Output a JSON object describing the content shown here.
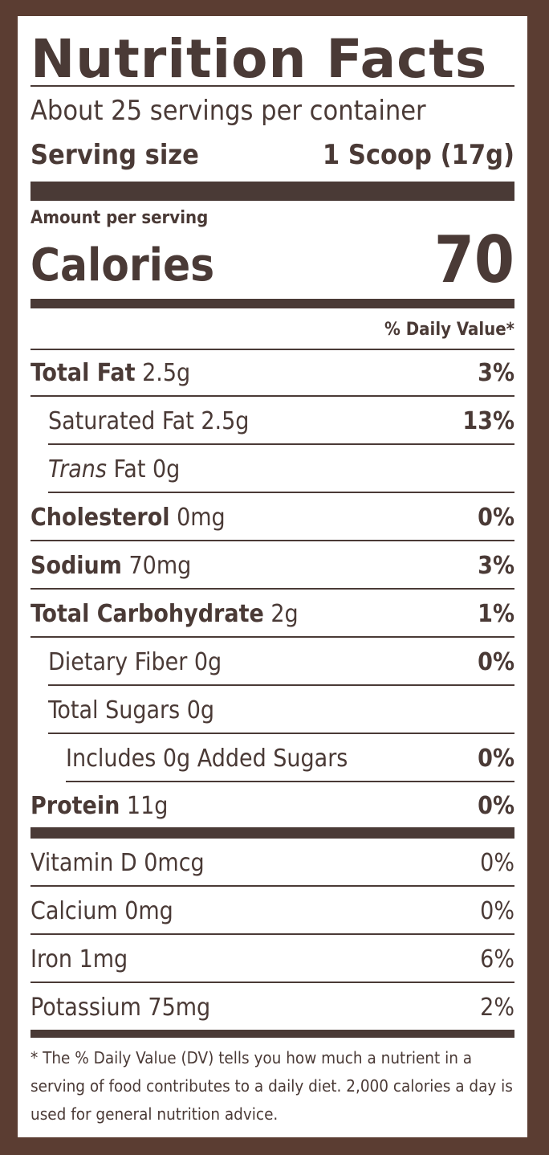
{
  "label": {
    "title": "Nutrition Facts",
    "servings_per_container": "About 25 servings per container",
    "serving_size_label": "Serving size",
    "serving_size_value": "1 Scoop (17g)",
    "amount_per_serving": "Amount per serving",
    "calories_label": "Calories",
    "calories_value": "70",
    "daily_value_header": "% Daily Value*",
    "nutrients": [
      {
        "name": "Total Fat",
        "amount": "2.5g",
        "dv": "3%"
      },
      {
        "name": "Saturated Fat 2.5g",
        "dv": "13%"
      },
      {
        "prefix": "Trans",
        "name": "Fat 0g",
        "dv": ""
      },
      {
        "name": "Cholesterol",
        "amount": "0mg",
        "dv": "0%"
      },
      {
        "name": "Sodium",
        "amount": "70mg",
        "dv": "3%"
      },
      {
        "name": "Total Carbohydrate",
        "amount": "2g",
        "dv": "1%"
      },
      {
        "name": "Dietary Fiber 0g",
        "dv": "0%"
      },
      {
        "name": "Total Sugars 0g",
        "dv": ""
      },
      {
        "name": "Includes 0g Added Sugars",
        "dv": "0%"
      },
      {
        "name": "Protein",
        "amount": "11g",
        "dv": "0%"
      }
    ],
    "vitamins": [
      {
        "name": "Vitamin D 0mcg",
        "dv": "0%"
      },
      {
        "name": "Calcium 0mg",
        "dv": "0%"
      },
      {
        "name": "Iron 1mg",
        "dv": "6%"
      },
      {
        "name": "Potassium 75mg",
        "dv": "2%"
      }
    ],
    "footnote": "* The % Daily Value (DV) tells you how much a nutrient in a serving of food contributes to a daily diet. 2,000 calories a day is used for general nutrition advice."
  },
  "colors": {
    "frame": "#5b3d32",
    "text": "#4a3a36"
  }
}
